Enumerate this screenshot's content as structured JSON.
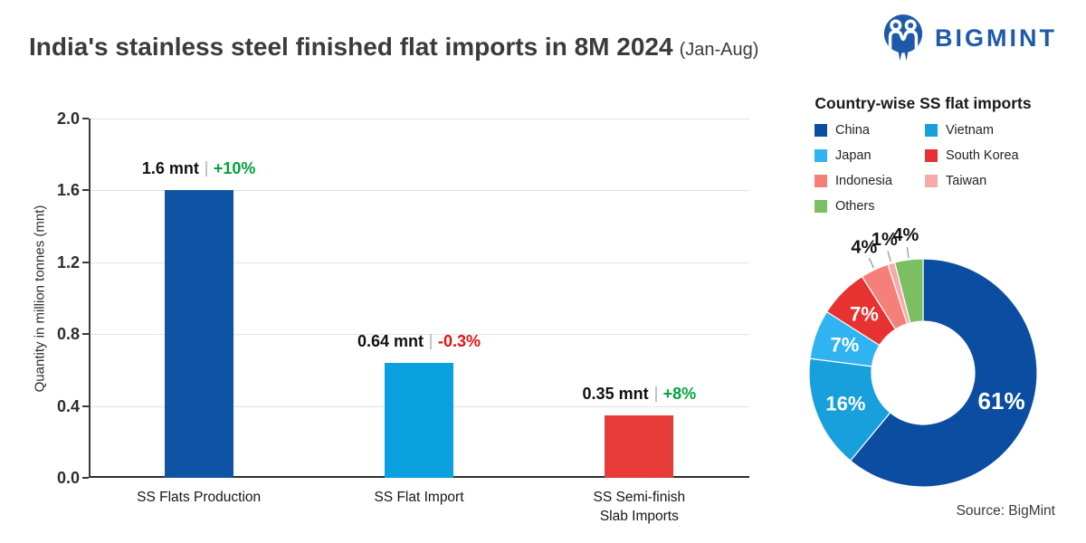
{
  "header": {
    "title": "India's stainless steel finished flat imports in 8M 2024",
    "subtitle": "(Jan-Aug)",
    "brand": "BIGMINT",
    "brand_color": "#1e5aa9"
  },
  "source": "Source: BigMint",
  "chart_data": [
    {
      "type": "bar",
      "title": "",
      "xlabel": "",
      "ylabel": "Quantity in million tonnes (mnt)",
      "ylim": [
        0,
        2.0
      ],
      "yticks": [
        0.0,
        0.4,
        0.8,
        1.2,
        1.6,
        2.0
      ],
      "grid": true,
      "categories": [
        "SS Flats Production",
        "SS Flat Import",
        "SS Semi-finish Slab Imports"
      ],
      "bars": [
        {
          "label_lines": [
            "SS Flats Production"
          ],
          "value": 1.6,
          "value_label": "1.6 mnt",
          "change": "+10%",
          "trend": "up",
          "color": "#0f54a4"
        },
        {
          "label_lines": [
            "SS Flat Import"
          ],
          "value": 0.64,
          "value_label": "0.64 mnt",
          "change": "-0.3%",
          "trend": "down",
          "color": "#0aa0e0"
        },
        {
          "label_lines": [
            "SS Semi-finish",
            "Slab Imports"
          ],
          "value": 0.35,
          "value_label": "0.35 mnt",
          "change": "+8%",
          "trend": "up",
          "color": "#e73b39"
        }
      ],
      "change_colors": {
        "up": "#00a33e",
        "down": "#ea1010"
      }
    },
    {
      "type": "pie",
      "donut": true,
      "title": "Country-wise SS flat imports",
      "start_angle": "top",
      "direction": "clockwise",
      "legend_position": "top",
      "slices": [
        {
          "label": "China",
          "value": 61,
          "display": "61%",
          "color": "#0b4da1",
          "label_placement": "inside"
        },
        {
          "label": "Vietnam",
          "value": 16,
          "display": "16%",
          "color": "#18a0dd",
          "label_placement": "inside"
        },
        {
          "label": "Japan",
          "value": 7,
          "display": "7%",
          "color": "#30b4f1",
          "label_placement": "inside"
        },
        {
          "label": "South Korea",
          "value": 7,
          "display": "7%",
          "color": "#e63230",
          "label_placement": "inside"
        },
        {
          "label": "Indonesia",
          "value": 4,
          "display": "4%",
          "color": "#f5807a",
          "label_placement": "outside"
        },
        {
          "label": "Taiwan",
          "value": 1,
          "display": "1%",
          "color": "#f3aca9",
          "label_placement": "outside"
        },
        {
          "label": "Others",
          "value": 4,
          "display": "4%",
          "color": "#7cbe62",
          "label_placement": "outside"
        }
      ]
    }
  ]
}
